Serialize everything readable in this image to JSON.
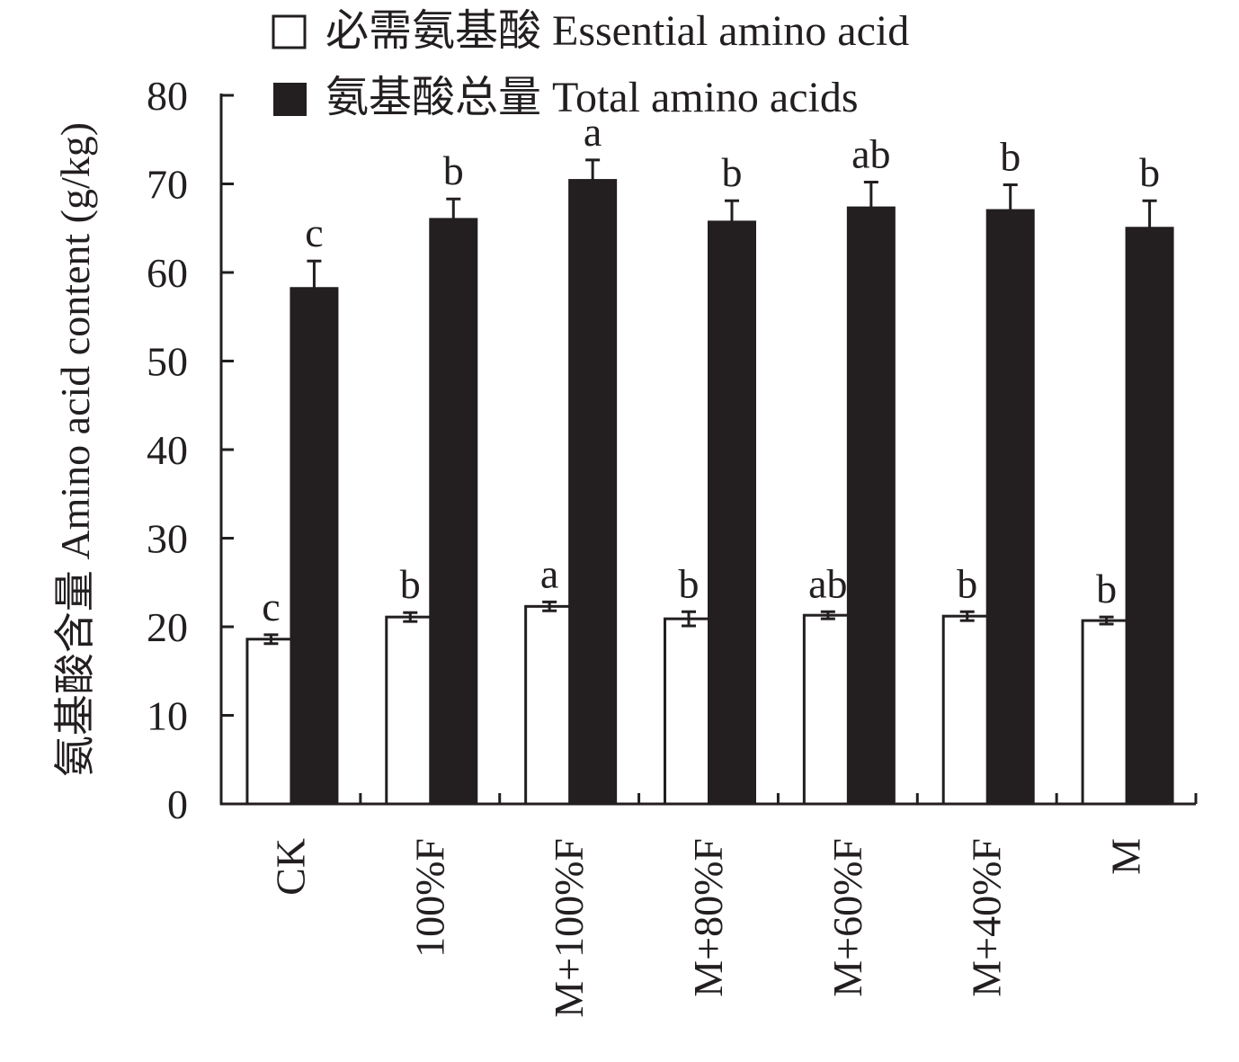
{
  "chart_data": {
    "type": "bar",
    "ylabel": "氨基酸含量 Amino acid content (g/kg)",
    "ylim": [
      0,
      80
    ],
    "yticks": [
      "0",
      "10",
      "20",
      "30",
      "40",
      "50",
      "60",
      "70",
      "80"
    ],
    "grid": false,
    "legend_position": "top",
    "categories": [
      "CK",
      "100%F",
      "M+100%F",
      "M+80%F",
      "M+60%F",
      "M+40%F",
      "M"
    ],
    "series": [
      {
        "name": "必需氨基酸 Essential amino acid",
        "fill": "#ffffff",
        "values": [
          18.6,
          21.1,
          22.3,
          20.9,
          21.3,
          21.2,
          20.7
        ],
        "errors": [
          0.5,
          0.5,
          0.5,
          0.8,
          0.4,
          0.5,
          0.4
        ],
        "letters": [
          "c",
          "b",
          "a",
          "b",
          "ab",
          "b",
          "b"
        ]
      },
      {
        "name": "氨基酸总量 Total amino acids",
        "fill": "#231f20",
        "values": [
          58.3,
          66.1,
          70.5,
          65.8,
          67.4,
          67.1,
          65.1
        ],
        "errors": [
          3.0,
          2.2,
          2.2,
          2.3,
          2.8,
          2.8,
          3.0
        ],
        "letters": [
          "c",
          "b",
          "a",
          "b",
          "ab",
          "b",
          "b"
        ]
      }
    ]
  }
}
